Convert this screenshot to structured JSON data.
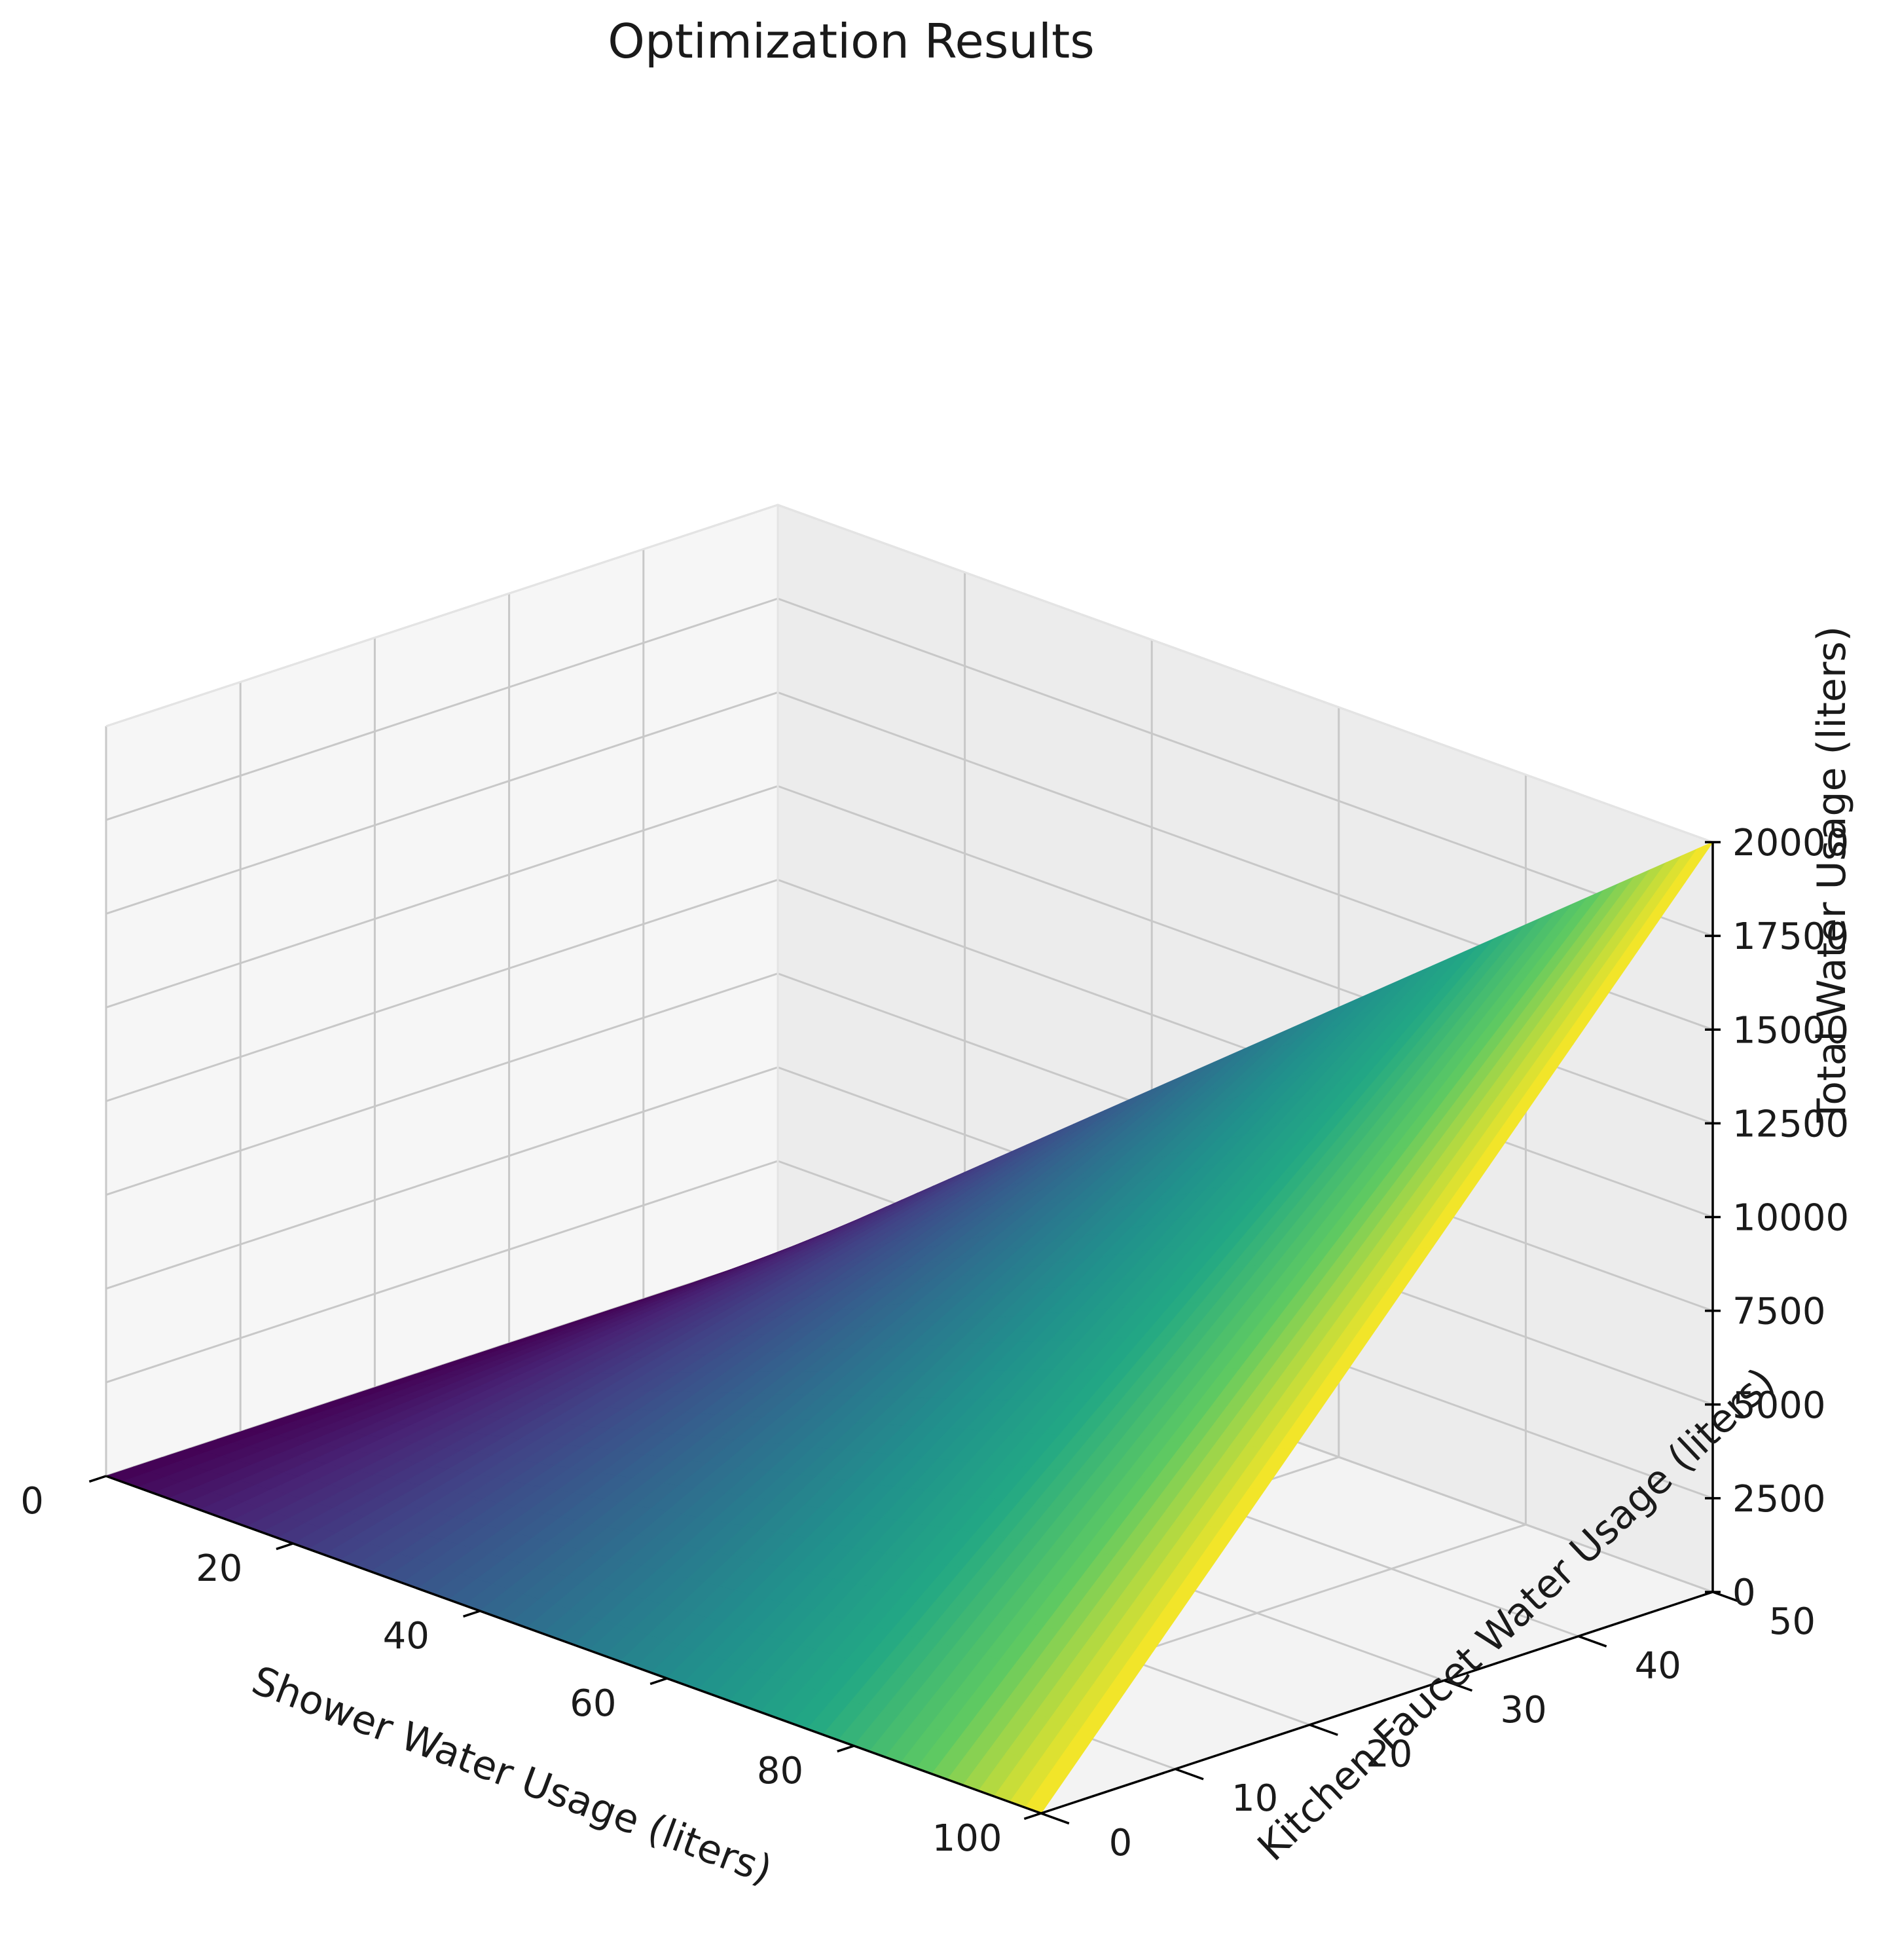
{
  "chart_data": {
    "type": "surface3d",
    "title": "Optimization Results",
    "xlabel": "Shower Water Usage (liters)",
    "ylabel": "Kitchen Faucet Water Usage (liters)",
    "zlabel": "Total Water Usage (liters)",
    "xlim": [
      0,
      100
    ],
    "ylim": [
      0,
      50
    ],
    "zlim": [
      0,
      20000
    ],
    "x_ticks": [
      "0",
      "20",
      "40",
      "60",
      "80",
      "100"
    ],
    "y_ticks": [
      "0",
      "10",
      "20",
      "30",
      "40",
      "50"
    ],
    "z_ticks": [
      "0",
      "2500",
      "5000",
      "7500",
      "10000",
      "12500",
      "15000",
      "17500",
      "20000"
    ],
    "colormap": "viridis",
    "grid": true,
    "surface": {
      "formula": "z = x * y * 4",
      "x_range": [
        0,
        100
      ],
      "y_range": [
        0,
        50
      ],
      "corners": [
        {
          "x": 0,
          "y": 0,
          "z": 0
        },
        {
          "x": 100,
          "y": 0,
          "z": 0
        },
        {
          "x": 0,
          "y": 50,
          "z": 0
        },
        {
          "x": 100,
          "y": 50,
          "z": 20000
        }
      ]
    },
    "pane_color": "#f2f2f2",
    "grid_color": "#c8c8c8"
  }
}
